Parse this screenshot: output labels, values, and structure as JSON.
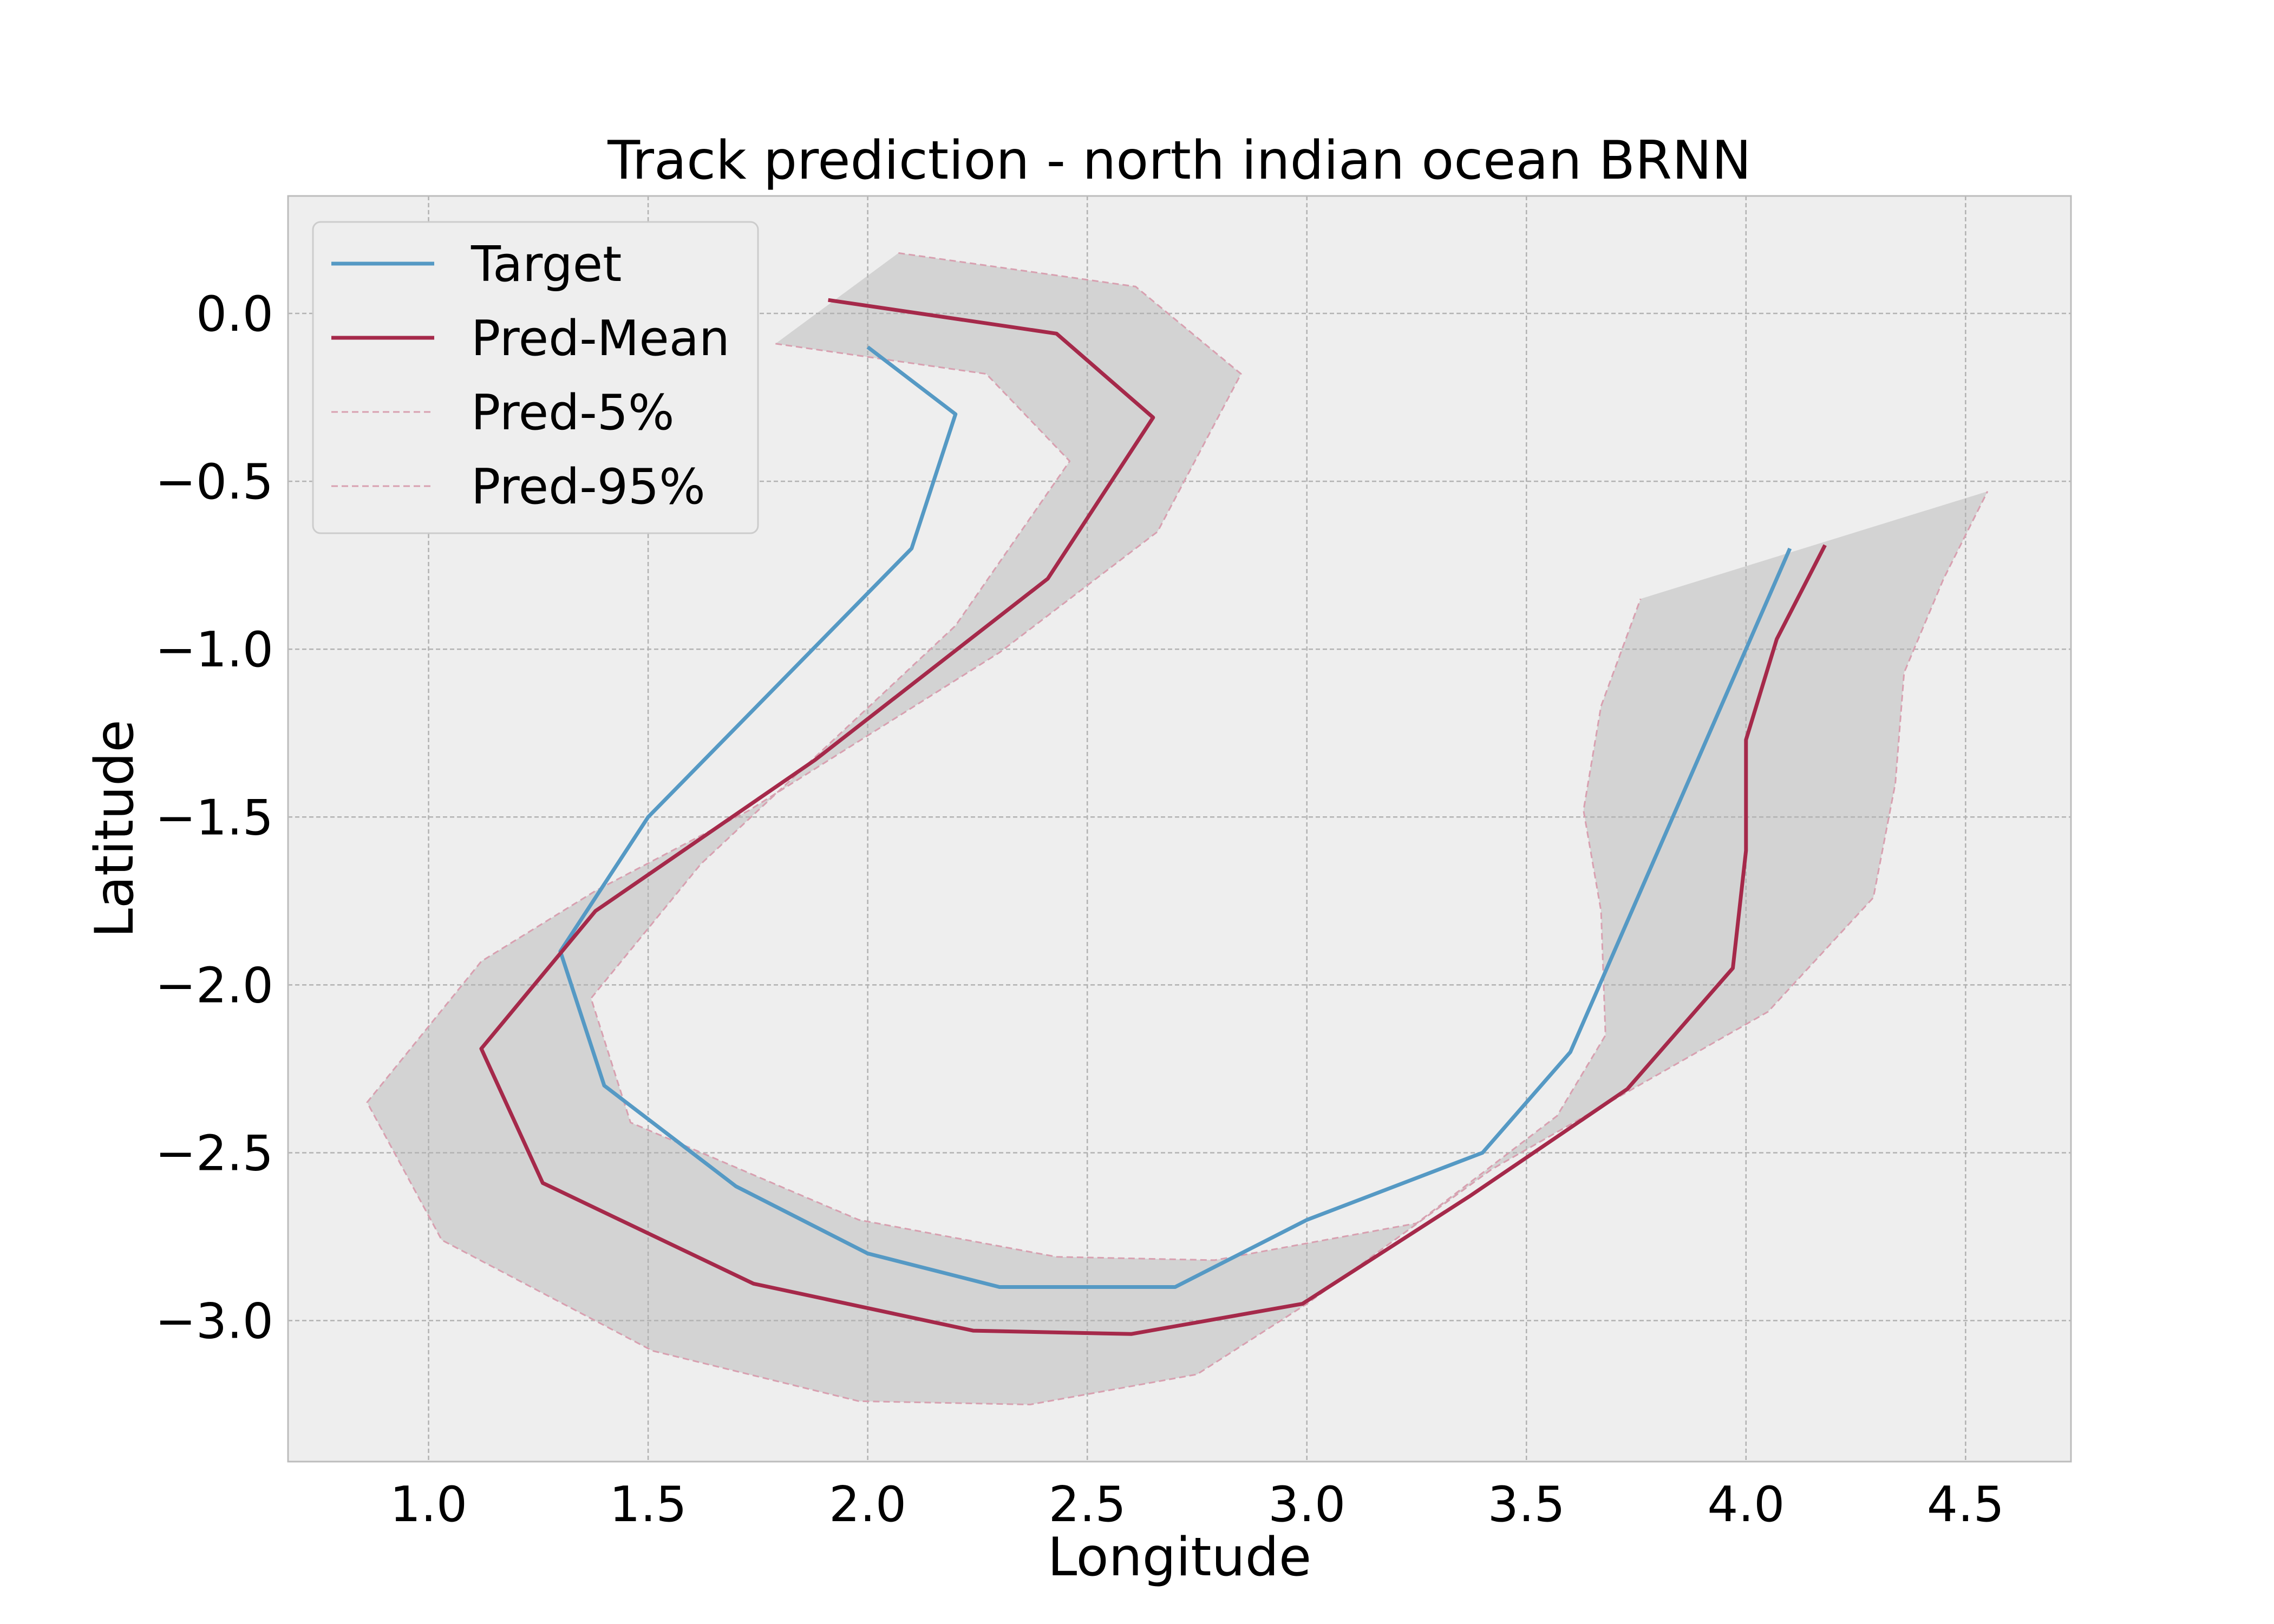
{
  "chart_data": {
    "type": "line",
    "title": "Track prediction - north indian ocean BRNN",
    "xlabel": "Longitude",
    "ylabel": "Latitude",
    "xlim": [
      0.68,
      4.74
    ],
    "ylim": [
      -3.42,
      0.35
    ],
    "x_ticks": [
      1.0,
      1.5,
      2.0,
      2.5,
      3.0,
      3.5,
      4.0,
      4.5
    ],
    "x_tick_labels": [
      "1.0",
      "1.5",
      "2.0",
      "2.5",
      "3.0",
      "3.5",
      "4.0",
      "4.5"
    ],
    "y_ticks": [
      0.0,
      -0.5,
      -1.0,
      -1.5,
      -2.0,
      -2.5,
      -3.0
    ],
    "y_tick_labels": [
      "0.0",
      "−0.5",
      "−1.0",
      "−1.5",
      "−2.0",
      "−2.5",
      "−3.0"
    ],
    "grid": true,
    "legend_position": "top-left",
    "background_color": "#eeeeee",
    "band_color": "#d3d3d3",
    "series": [
      {
        "name": "Target",
        "color": "#5599c4",
        "style": "solid",
        "x": [
          2.0,
          2.2,
          2.1,
          1.5,
          1.3,
          1.4,
          1.7,
          2.0,
          2.3,
          2.7,
          3.0,
          3.4,
          3.6,
          4.1
        ],
        "y": [
          -0.1,
          -0.3,
          -0.7,
          -1.5,
          -1.9,
          -2.3,
          -2.6,
          -2.8,
          -2.9,
          -2.9,
          -2.7,
          -2.5,
          -2.2,
          -0.7
        ]
      },
      {
        "name": "Pred-Mean",
        "color": "#a5294a",
        "style": "solid",
        "x": [
          1.91,
          2.43,
          2.65,
          2.41,
          1.88,
          1.38,
          1.12,
          1.26,
          1.74,
          2.24,
          2.6,
          2.99,
          3.37,
          3.73,
          3.97,
          4.0,
          4.0,
          4.07,
          4.18
        ],
        "y": [
          0.04,
          -0.06,
          -0.31,
          -0.79,
          -1.33,
          -1.78,
          -2.19,
          -2.59,
          -2.89,
          -3.03,
          -3.04,
          -2.95,
          -2.63,
          -2.31,
          -1.95,
          -1.6,
          -1.27,
          -0.97,
          -0.69
        ]
      },
      {
        "name": "Pred-5%",
        "color": "#d8a0b0",
        "style": "dashed",
        "x": [
          1.79,
          2.27,
          2.46,
          2.2,
          1.62,
          1.37,
          1.46,
          1.98,
          2.43,
          2.79,
          3.25,
          3.57,
          3.68,
          3.67,
          3.63,
          3.67,
          3.76
        ],
        "y": [
          -0.09,
          -0.18,
          -0.44,
          -0.93,
          -1.64,
          -2.04,
          -2.41,
          -2.7,
          -2.81,
          -2.82,
          -2.71,
          -2.39,
          -2.15,
          -1.78,
          -1.48,
          -1.17,
          -0.85
        ]
      },
      {
        "name": "Pred-95%",
        "color": "#d8a0b0",
        "style": "dashed",
        "x": [
          2.07,
          2.61,
          2.85,
          2.66,
          2.3,
          1.73,
          1.38,
          1.12,
          0.86,
          1.03,
          1.51,
          1.98,
          2.37,
          2.75,
          3.0,
          3.42,
          4.05,
          4.29,
          4.34,
          4.36,
          4.45,
          4.55
        ],
        "y": [
          0.18,
          0.08,
          -0.18,
          -0.65,
          -1.01,
          -1.48,
          -1.72,
          -1.93,
          -2.35,
          -2.76,
          -3.09,
          -3.24,
          -3.25,
          -3.16,
          -2.95,
          -2.55,
          -2.08,
          -1.74,
          -1.4,
          -1.07,
          -0.79,
          -0.53
        ]
      }
    ]
  }
}
